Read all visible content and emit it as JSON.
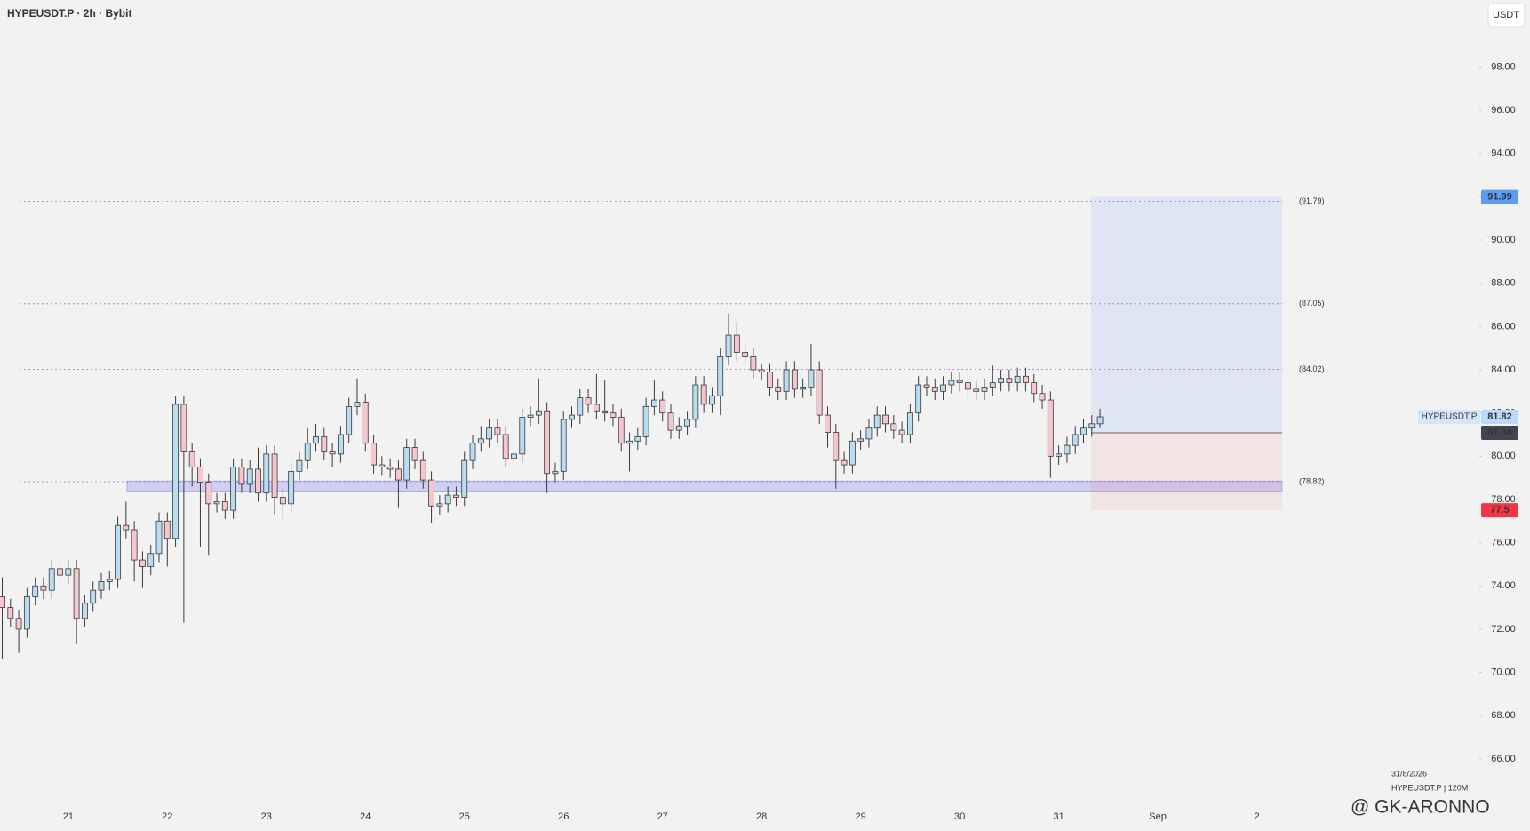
{
  "chart_data": {
    "type": "candlestick",
    "title": "HYPEUSDT.P · 2h · Bybit",
    "currency": "USDT",
    "symbol": "HYPEUSDT.P",
    "categories": [
      null,
      null,
      null,
      null,
      null,
      null,
      null,
      null,
      "21",
      null,
      null,
      null,
      null,
      null,
      null,
      null,
      null,
      null,
      null,
      null,
      "22",
      null,
      null,
      null,
      null,
      null,
      null,
      null,
      null,
      null,
      null,
      null,
      "23",
      null,
      null,
      null,
      null,
      null,
      null,
      null,
      null,
      null,
      null,
      null,
      "24",
      null,
      null,
      null,
      null,
      null,
      null,
      null,
      null,
      null,
      null,
      null,
      "25",
      null,
      null,
      null,
      null,
      null,
      null,
      null,
      null,
      null,
      null,
      null,
      "26",
      null,
      null,
      null,
      null,
      null,
      null,
      null,
      null,
      null,
      null,
      null,
      "27",
      null,
      null,
      null,
      null,
      null,
      null,
      null,
      null,
      null,
      null,
      null,
      "28",
      null,
      null,
      null,
      null,
      null,
      null,
      null,
      null,
      null,
      null,
      null,
      "29",
      null,
      null,
      null,
      null,
      null,
      null,
      null,
      null,
      null,
      null,
      null,
      "30",
      null,
      null,
      null,
      null,
      null,
      null,
      null,
      null,
      null,
      null,
      null,
      "31",
      null,
      null,
      null,
      null,
      null,
      null,
      null,
      null,
      null,
      null,
      null,
      "Sep",
      null,
      null,
      null,
      null,
      null,
      null,
      null,
      null,
      null,
      null,
      null,
      "2"
    ],
    "open": [
      73.5,
      73,
      72.5,
      72,
      73.5,
      74,
      73.8,
      74.8,
      74.5,
      74.8,
      72.5,
      73.2,
      73.8,
      74.2,
      74.3,
      76.8,
      76.6,
      75.2,
      74.9,
      75.5,
      77,
      76.2,
      82.4,
      80.2,
      79.5,
      78.8,
      77.8,
      77.9,
      77.5,
      79.5,
      78.7,
      79.4,
      78.3,
      80.1,
      78.1,
      77.8,
      79.3,
      79.8,
      80.6,
      80.9,
      80.2,
      80.1,
      81,
      82.3,
      82.5,
      80.6,
      79.6,
      79.5,
      79.4,
      78.9,
      80.4,
      79.8,
      78.9,
      77.7,
      77.8,
      78.2,
      78.1,
      79.8,
      80.6,
      80.8,
      81.3,
      81,
      79.9,
      80.1,
      81.8,
      81.9,
      82.1,
      79.2,
      79.3,
      81.7,
      81.9,
      82.7,
      82.4,
      82.1,
      82,
      81.8,
      80.6,
      80.7,
      80.9,
      82.3,
      82.6,
      82,
      81.2,
      81.4,
      81.7,
      83.3,
      82.4,
      82.8,
      84.6,
      85.6,
      84.8,
      84.6,
      84,
      83.9,
      83.2,
      83,
      84,
      83.1,
      83.2,
      84,
      81.9,
      81.1,
      79.8,
      79.6,
      80.7,
      80.8,
      81.3,
      81.9,
      81.5,
      81.2,
      81,
      82,
      83.3,
      83.2,
      83,
      83.3,
      83.5,
      83.4,
      83.1,
      83,
      83.2,
      83.4,
      83.6,
      83.4,
      83.7,
      83.4,
      82.9,
      82.6,
      80,
      80.1,
      80.5,
      81,
      81.3,
      81.5,
      null,
      null,
      null,
      null,
      null,
      null,
      null,
      null,
      null,
      null,
      null,
      null,
      null,
      null,
      null,
      null,
      null,
      null,
      null
    ],
    "high": [
      74.4,
      73.4,
      72.9,
      73.9,
      74.4,
      74.4,
      75.2,
      75.2,
      75.2,
      75.2,
      73.6,
      74.2,
      74.6,
      74.7,
      77.2,
      77.9,
      77,
      75.6,
      75.9,
      77.4,
      77.4,
      82.8,
      82.8,
      80.6,
      79.9,
      79.2,
      78.3,
      78.3,
      79.9,
      79.9,
      79.8,
      80.4,
      80.5,
      80.5,
      78.5,
      79.7,
      80.2,
      81.3,
      81.5,
      81.3,
      80.6,
      81.4,
      82.7,
      83.6,
      82.9,
      81,
      80,
      79.9,
      79.8,
      80.8,
      80.8,
      80.2,
      79.3,
      78.2,
      78.6,
      78.6,
      80.2,
      81,
      81.4,
      81.7,
      81.7,
      81.4,
      80.5,
      82.2,
      82.3,
      83.6,
      82.5,
      79.7,
      82.1,
      82.3,
      83.1,
      83.1,
      83.8,
      83.5,
      82.4,
      82.2,
      81.1,
      81.3,
      82.7,
      83.5,
      83,
      82.4,
      81.8,
      82.1,
      83.7,
      83.7,
      83.2,
      85,
      86.6,
      86.2,
      85.2,
      85,
      84.3,
      84.3,
      83.6,
      84.4,
      84.4,
      83.6,
      85.2,
      84.4,
      82.3,
      81.5,
      80.2,
      81.1,
      81.2,
      81.7,
      82.3,
      82.3,
      81.9,
      81.6,
      82.4,
      83.7,
      83.7,
      83.6,
      83.7,
      83.9,
      83.9,
      83.8,
      83.5,
      83.6,
      84.2,
      84,
      84,
      84.1,
      84.1,
      83.8,
      83.3,
      83,
      80.5,
      80.9,
      81.4,
      81.7,
      81.9,
      82.2,
      null,
      null,
      null,
      null,
      null,
      null,
      null,
      null,
      null,
      null,
      null,
      null,
      null,
      null,
      null,
      null,
      null,
      null,
      null
    ],
    "low": [
      70.6,
      72.1,
      70.9,
      71.6,
      73.1,
      73.4,
      73.4,
      74.1,
      74.1,
      71.3,
      72.1,
      72.8,
      73.4,
      73.8,
      73.9,
      76.2,
      74.2,
      73.9,
      74.5,
      75.1,
      74.9,
      75.8,
      72.3,
      78.6,
      75.8,
      75.4,
      77.4,
      77.1,
      77.1,
      78.3,
      78.3,
      77.9,
      77.9,
      77.3,
      77.1,
      77.4,
      78.9,
      79.4,
      80.2,
      79.8,
      79.5,
      79.7,
      80.6,
      81.9,
      80.2,
      79.2,
      79.1,
      79,
      77.6,
      78.5,
      79.4,
      78.5,
      76.9,
      77.3,
      77.4,
      77.7,
      77.7,
      79.4,
      80.2,
      80.4,
      80.6,
      79.5,
      79.5,
      79.7,
      81.4,
      81.5,
      78.3,
      78.8,
      78.9,
      81.3,
      81.5,
      82,
      81.7,
      81.6,
      81.4,
      80.2,
      79.3,
      80.3,
      80.5,
      81.9,
      81.6,
      80.8,
      80.8,
      81,
      81.3,
      82,
      82,
      81.9,
      84.2,
      84.4,
      84.2,
      83.6,
      83.5,
      82.8,
      82.6,
      82.6,
      82.7,
      82.7,
      82.8,
      81.5,
      80.4,
      78.5,
      79.2,
      79.2,
      80.3,
      80.4,
      80.9,
      81.1,
      80.8,
      80.6,
      80.6,
      81.6,
      82.8,
      82.6,
      82.6,
      82.9,
      83,
      82.7,
      82.6,
      82.6,
      82.8,
      83,
      83,
      83,
      83,
      82.5,
      82.2,
      79,
      79.6,
      79.7,
      80.1,
      80.6,
      80.9,
      81.3,
      null,
      null,
      null,
      null,
      null,
      null,
      null,
      null,
      null,
      null,
      null,
      null,
      null,
      null,
      null,
      null,
      null,
      null,
      null
    ],
    "close": [
      73,
      72.5,
      72,
      73.5,
      74,
      73.8,
      74.8,
      74.5,
      74.8,
      72.5,
      73.2,
      73.8,
      74.2,
      74.3,
      76.8,
      76.6,
      75.2,
      74.9,
      75.5,
      77,
      76.2,
      82.4,
      80.2,
      79.5,
      78.8,
      77.8,
      77.9,
      77.5,
      79.5,
      78.7,
      79.4,
      78.3,
      80.1,
      78.1,
      77.8,
      79.3,
      79.8,
      80.6,
      80.9,
      80.2,
      80.1,
      81,
      82.3,
      82.5,
      80.6,
      79.6,
      79.5,
      79.4,
      78.9,
      80.4,
      79.8,
      78.9,
      77.7,
      77.8,
      78.2,
      78.1,
      79.8,
      80.6,
      80.8,
      81.3,
      81,
      79.9,
      80.1,
      81.8,
      81.9,
      82.1,
      79.2,
      79.3,
      81.7,
      81.9,
      82.7,
      82.4,
      82.1,
      82,
      81.8,
      80.6,
      80.7,
      80.9,
      82.3,
      82.6,
      82,
      81.2,
      81.4,
      81.7,
      83.3,
      82.4,
      82.8,
      84.6,
      85.6,
      84.8,
      84.6,
      84,
      83.9,
      83.2,
      83,
      84,
      83.1,
      83.2,
      84,
      81.9,
      81.1,
      79.8,
      79.6,
      80.7,
      80.8,
      81.3,
      81.9,
      81.5,
      81.2,
      81,
      82,
      83.3,
      83.2,
      83,
      83.3,
      83.5,
      83.4,
      83.1,
      83,
      83.2,
      83.4,
      83.6,
      83.4,
      83.7,
      83.4,
      82.9,
      82.6,
      80,
      80.1,
      80.5,
      81,
      81.3,
      81.5,
      81.82,
      null,
      null,
      null,
      null,
      null,
      null,
      null,
      null,
      null,
      null,
      null,
      null,
      null,
      null,
      null,
      null,
      null,
      null,
      null
    ],
    "up_color": "#b8dcf2",
    "down_color": "#f5c6cd",
    "outline_color": "#3a3a3a",
    "ylim": [
      63.9,
      101.1
    ],
    "yticks": [
      {
        "value": 66,
        "label": "66.00"
      },
      {
        "value": 68,
        "label": "68.00"
      },
      {
        "value": 70,
        "label": "70.00"
      },
      {
        "value": 72,
        "label": "72.00"
      },
      {
        "value": 74,
        "label": "74.00"
      },
      {
        "value": 76,
        "label": "76.00"
      },
      {
        "value": 78,
        "label": "78.00"
      },
      {
        "value": 80,
        "label": "80.00"
      },
      {
        "value": 82,
        "label": "82.00"
      },
      {
        "value": 84,
        "label": "84.00"
      },
      {
        "value": 86,
        "label": "86.00"
      },
      {
        "value": 88,
        "label": "88.00"
      },
      {
        "value": 90,
        "label": "90.00"
      },
      {
        "value": 92,
        "label": "92.00"
      },
      {
        "value": 94,
        "label": "94.00"
      },
      {
        "value": 96,
        "label": "96.00"
      },
      {
        "value": 98,
        "label": "98.00"
      }
    ],
    "levels": {
      "values": [
        91.79,
        87.05,
        84.02,
        78.82
      ],
      "value_labels": [
        "(91.79)",
        "(87.05)",
        "(84.02)",
        "(78.82)"
      ],
      "color": "#9575cd"
    },
    "zone": [
      78.35,
      78.85
    ],
    "position": {
      "values": [
        91.99,
        81.08,
        77.5
      ],
      "value_labels": [
        "91.99",
        "81.08",
        "77.50"
      ]
    },
    "footer": {
      "date": "31/8/2026",
      "symbol_interval": "HYPEUSDT.P | 120M",
      "watermark": "@ GK-ARONNO"
    }
  }
}
